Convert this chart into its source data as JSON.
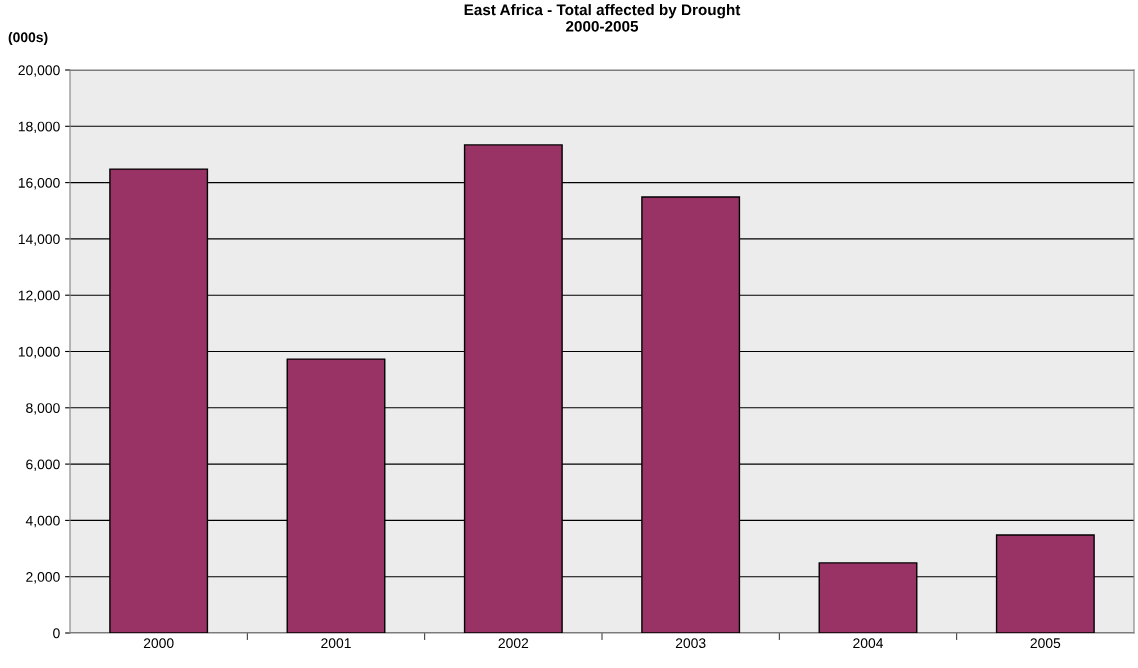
{
  "chart_data": {
    "type": "bar",
    "title": "East Africa - Total affected by Drought\n2000-2005",
    "ylabel": "(000s)",
    "categories": [
      "2000",
      "2001",
      "2002",
      "2003",
      "2004",
      "2005"
    ],
    "values": [
      16480,
      9730,
      17340,
      15490,
      2490,
      3480
    ],
    "color": "#993366",
    "ylim": [
      0,
      20000
    ],
    "yticks": [
      {
        "value": 0,
        "label": "0"
      },
      {
        "value": 2000,
        "label": "2,000"
      },
      {
        "value": 4000,
        "label": "4,000"
      },
      {
        "value": 6000,
        "label": "6,000"
      },
      {
        "value": 8000,
        "label": "8,000"
      },
      {
        "value": 10000,
        "label": "10,000"
      },
      {
        "value": 12000,
        "label": "12,000"
      },
      {
        "value": 14000,
        "label": "14,000"
      },
      {
        "value": 16000,
        "label": "16,000"
      },
      {
        "value": 18000,
        "label": "18,000"
      },
      {
        "value": 20000,
        "label": "20,000"
      }
    ],
    "grid": "y",
    "legend": false
  }
}
